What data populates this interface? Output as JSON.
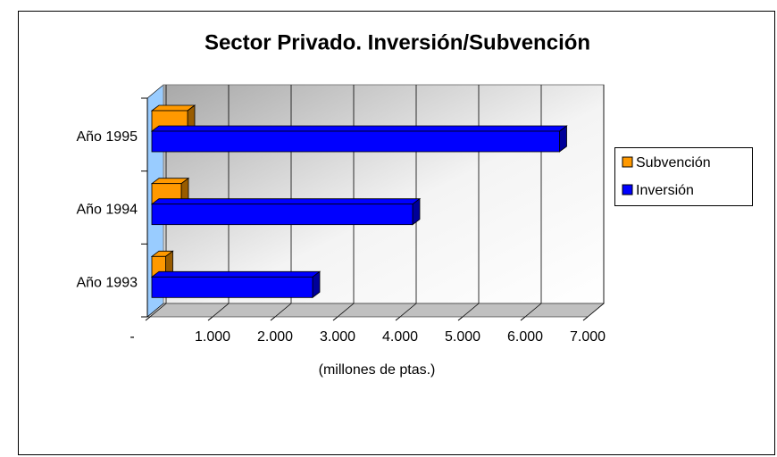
{
  "chart_data": {
    "type": "bar3d_horizontal",
    "title": "Sector Privado. Inversión/Subvención",
    "categories": [
      "Año 1993",
      "Año 1994",
      "Año 1995"
    ],
    "series": [
      {
        "name": "Subvención",
        "color": "#ff9900",
        "values": [
          250,
          500,
          600
        ]
      },
      {
        "name": "Inversión",
        "color": "#0000ff",
        "values": [
          2600,
          4200,
          6550
        ]
      }
    ],
    "xlabel": "(millones de ptas.)",
    "xlim": [
      0,
      7000
    ],
    "xticks": [
      {
        "value": 0,
        "label": "-"
      },
      {
        "value": 1000,
        "label": "1.000"
      },
      {
        "value": 2000,
        "label": "2.000"
      },
      {
        "value": 3000,
        "label": "3.000"
      },
      {
        "value": 4000,
        "label": "4.000"
      },
      {
        "value": 5000,
        "label": "5.000"
      },
      {
        "value": 6000,
        "label": "6.000"
      },
      {
        "value": 7000,
        "label": "7.000"
      }
    ],
    "grid": true,
    "legend": "right"
  }
}
